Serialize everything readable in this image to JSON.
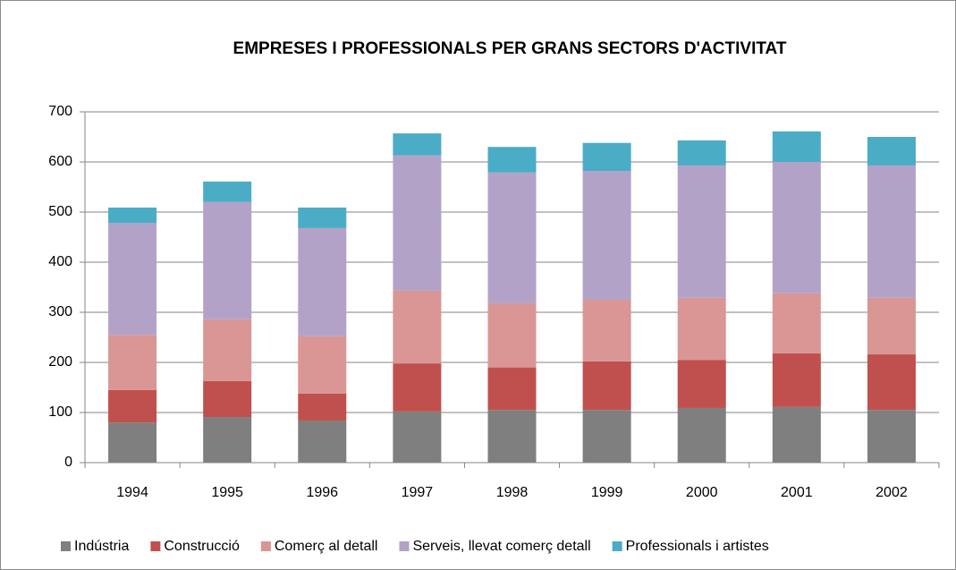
{
  "chart_data": {
    "type": "stacked-bar",
    "title": "EMPRESES I PROFESSIONALS  PER GRANS  SECTORS D'ACTIVITAT",
    "categories": [
      "1994",
      "1995",
      "1996",
      "1997",
      "1998",
      "1999",
      "2000",
      "2001",
      "2002"
    ],
    "series": [
      {
        "name": "Indústria",
        "color": "#7f7f7f",
        "values": [
          80,
          91,
          84,
          102,
          105,
          105,
          109,
          111,
          105
        ]
      },
      {
        "name": "Construcció",
        "color": "#c0504d",
        "values": [
          65,
          72,
          54,
          96,
          85,
          97,
          96,
          107,
          111
        ]
      },
      {
        "name": "Comerç al detall",
        "color": "#d99694",
        "values": [
          110,
          123,
          114,
          145,
          128,
          123,
          124,
          120,
          113
        ]
      },
      {
        "name": "Serveis, llevat comerç detall",
        "color": "#b3a2c7",
        "values": [
          223,
          234,
          216,
          270,
          261,
          257,
          264,
          262,
          264
        ]
      },
      {
        "name": "Professionals i artistes",
        "color": "#4bacc6",
        "values": [
          31,
          41,
          41,
          44,
          51,
          56,
          50,
          61,
          57
        ]
      }
    ],
    "ylim": [
      0,
      700
    ],
    "yticks": [
      0,
      100,
      200,
      300,
      400,
      500,
      600,
      700
    ],
    "grid": true,
    "legend": "bottom"
  }
}
